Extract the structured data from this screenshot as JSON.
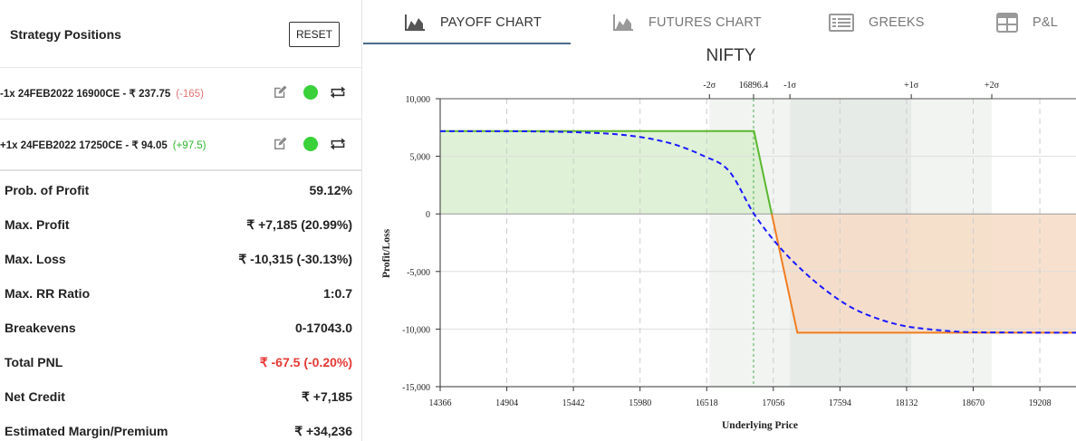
{
  "left_panel": {
    "title": "Strategy Positions",
    "reset_label": "RESET",
    "positions": [
      {
        "text": "-1x  24FEB2022  16900CE  - ₹ 237.75",
        "pnl": "(-165)",
        "pnl_sign": "neg"
      },
      {
        "text": "+1x  24FEB2022  17250CE  - ₹ 94.05",
        "pnl": "(+97.5)",
        "pnl_sign": "pos"
      }
    ],
    "stats": [
      {
        "label": "Prob. of Profit",
        "value": "59.12%"
      },
      {
        "label": "Max. Profit",
        "value": "₹ +7,185 (20.99%)"
      },
      {
        "label": "Max. Loss",
        "value": "₹ -10,315 (-30.13%)"
      },
      {
        "label": "Max. RR Ratio",
        "value": "1:0.7"
      },
      {
        "label": "Breakevens",
        "value": "0-17043.0"
      },
      {
        "label": "Total PNL",
        "value": "₹ -67.5 (-0.20%)",
        "highlight": "#e53935"
      },
      {
        "label": "Net Credit",
        "value": "₹ +7,185"
      },
      {
        "label": "Estimated Margin/Premium",
        "value": "₹ +34,236"
      }
    ]
  },
  "tabs": [
    {
      "label": "PAYOFF CHART",
      "icon": "area-chart-icon",
      "active": true
    },
    {
      "label": "FUTURES CHART",
      "icon": "area-chart-icon",
      "active": false
    },
    {
      "label": "GREEKS",
      "icon": "list-icon",
      "active": false
    },
    {
      "label": "P&L",
      "icon": "table-icon",
      "active": false
    }
  ],
  "chart_data": {
    "type": "line",
    "title": "NIFTY",
    "xlabel": "Underlying Price",
    "ylabel": "Profit/Loss",
    "xlim": [
      14366,
      19500
    ],
    "ylim": [
      -15000,
      10000
    ],
    "x_ticks": [
      14366,
      14904,
      15442,
      15980,
      16518,
      17056,
      17594,
      18132,
      18670,
      19208
    ],
    "y_ticks": [
      10000,
      5000,
      0,
      -5000,
      -10000,
      -15000
    ],
    "y_tick_labels": [
      "10,000",
      "5,000",
      "0",
      "-5,000",
      "-10,000",
      "-15,000"
    ],
    "sigma_markers": [
      {
        "label": "-2σ",
        "x": 16540
      },
      {
        "label": "-1σ",
        "x": 17190
      },
      {
        "label": "16896.4",
        "x": 16896.4
      },
      {
        "label": "+1σ",
        "x": 18170
      },
      {
        "label": "+2σ",
        "x": 18820
      }
    ],
    "sigma_bands": {
      "two_sigma": [
        16540,
        18820
      ],
      "one_sigma": [
        17190,
        18170
      ]
    },
    "current_price": 16896.4,
    "series": [
      {
        "style": "expiry",
        "points": [
          [
            14366,
            7185
          ],
          [
            16900,
            7185
          ],
          [
            17043,
            0
          ],
          [
            17250,
            -10315
          ],
          [
            19500,
            -10315
          ]
        ],
        "profit_color": "#5ab82e",
        "loss_color": "#f07d20",
        "profit_fill": "#d9eecf",
        "loss_fill": "#f6dcc6"
      },
      {
        "style": "target-dashed",
        "color": "#1a1aff",
        "points": [
          [
            14366,
            7180
          ],
          [
            15200,
            7150
          ],
          [
            15800,
            6900
          ],
          [
            16200,
            6200
          ],
          [
            16500,
            5000
          ],
          [
            16700,
            3700
          ],
          [
            16900,
            0
          ],
          [
            17100,
            -2800
          ],
          [
            17300,
            -5000
          ],
          [
            17500,
            -6800
          ],
          [
            17700,
            -8200
          ],
          [
            17900,
            -9100
          ],
          [
            18100,
            -9700
          ],
          [
            18300,
            -10000
          ],
          [
            18600,
            -10250
          ],
          [
            19000,
            -10300
          ],
          [
            19500,
            -10315
          ]
        ]
      }
    ],
    "grid": true
  },
  "colors": {
    "accent": "#4a6b8a",
    "profit": "#5ab82e",
    "loss": "#f07d20",
    "negative_text": "#e53935"
  }
}
